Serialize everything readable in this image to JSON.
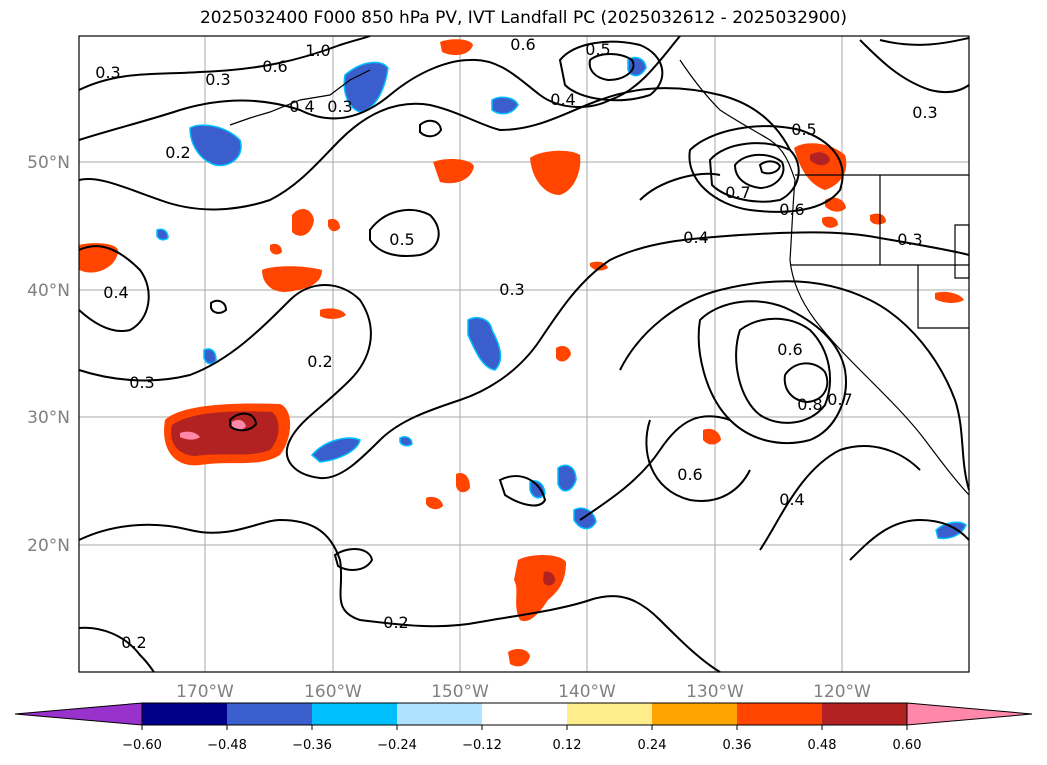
{
  "title": "2025032400 F000 850 hPa PV, IVT Landfall PC (2025032612 - 2025032900)",
  "latitude_labels": [
    "50°N",
    "40°N",
    "30°N",
    "20°N"
  ],
  "longitude_labels": [
    "170°W",
    "160°W",
    "150°W",
    "140°W",
    "130°W",
    "120°W"
  ],
  "contour_labels": [
    "0.3",
    "1.0",
    "0.6",
    "0.5",
    "0.6",
    "0.4",
    "0.3",
    "0.4",
    "0.3",
    "0.2",
    "0.5",
    "0.7",
    "0.6",
    "0.4",
    "0.3",
    "0.5",
    "0.3",
    "0.4",
    "0.3",
    "0.2",
    "0.3",
    "0.6",
    "0.7",
    "0.8",
    "0.6",
    "0.4",
    "0.2",
    "0.2"
  ],
  "colorbar": {
    "ticks": [
      "−0.60",
      "−0.48",
      "−0.36",
      "−0.24",
      "−0.12",
      "0.12",
      "0.24",
      "0.36",
      "0.48",
      "0.60"
    ],
    "colors": [
      "#9932CC",
      "#00008B",
      "#3A5FCD",
      "#00BFFF",
      "#B0E2FF",
      "#FFFFFF",
      "#FFEC8B",
      "#FFA500",
      "#FF4500",
      "#B22222",
      "#FF88AA"
    ]
  },
  "colors": {
    "frame": "#000000",
    "grid": "#a9a9a9",
    "axis_label": "#808080"
  }
}
